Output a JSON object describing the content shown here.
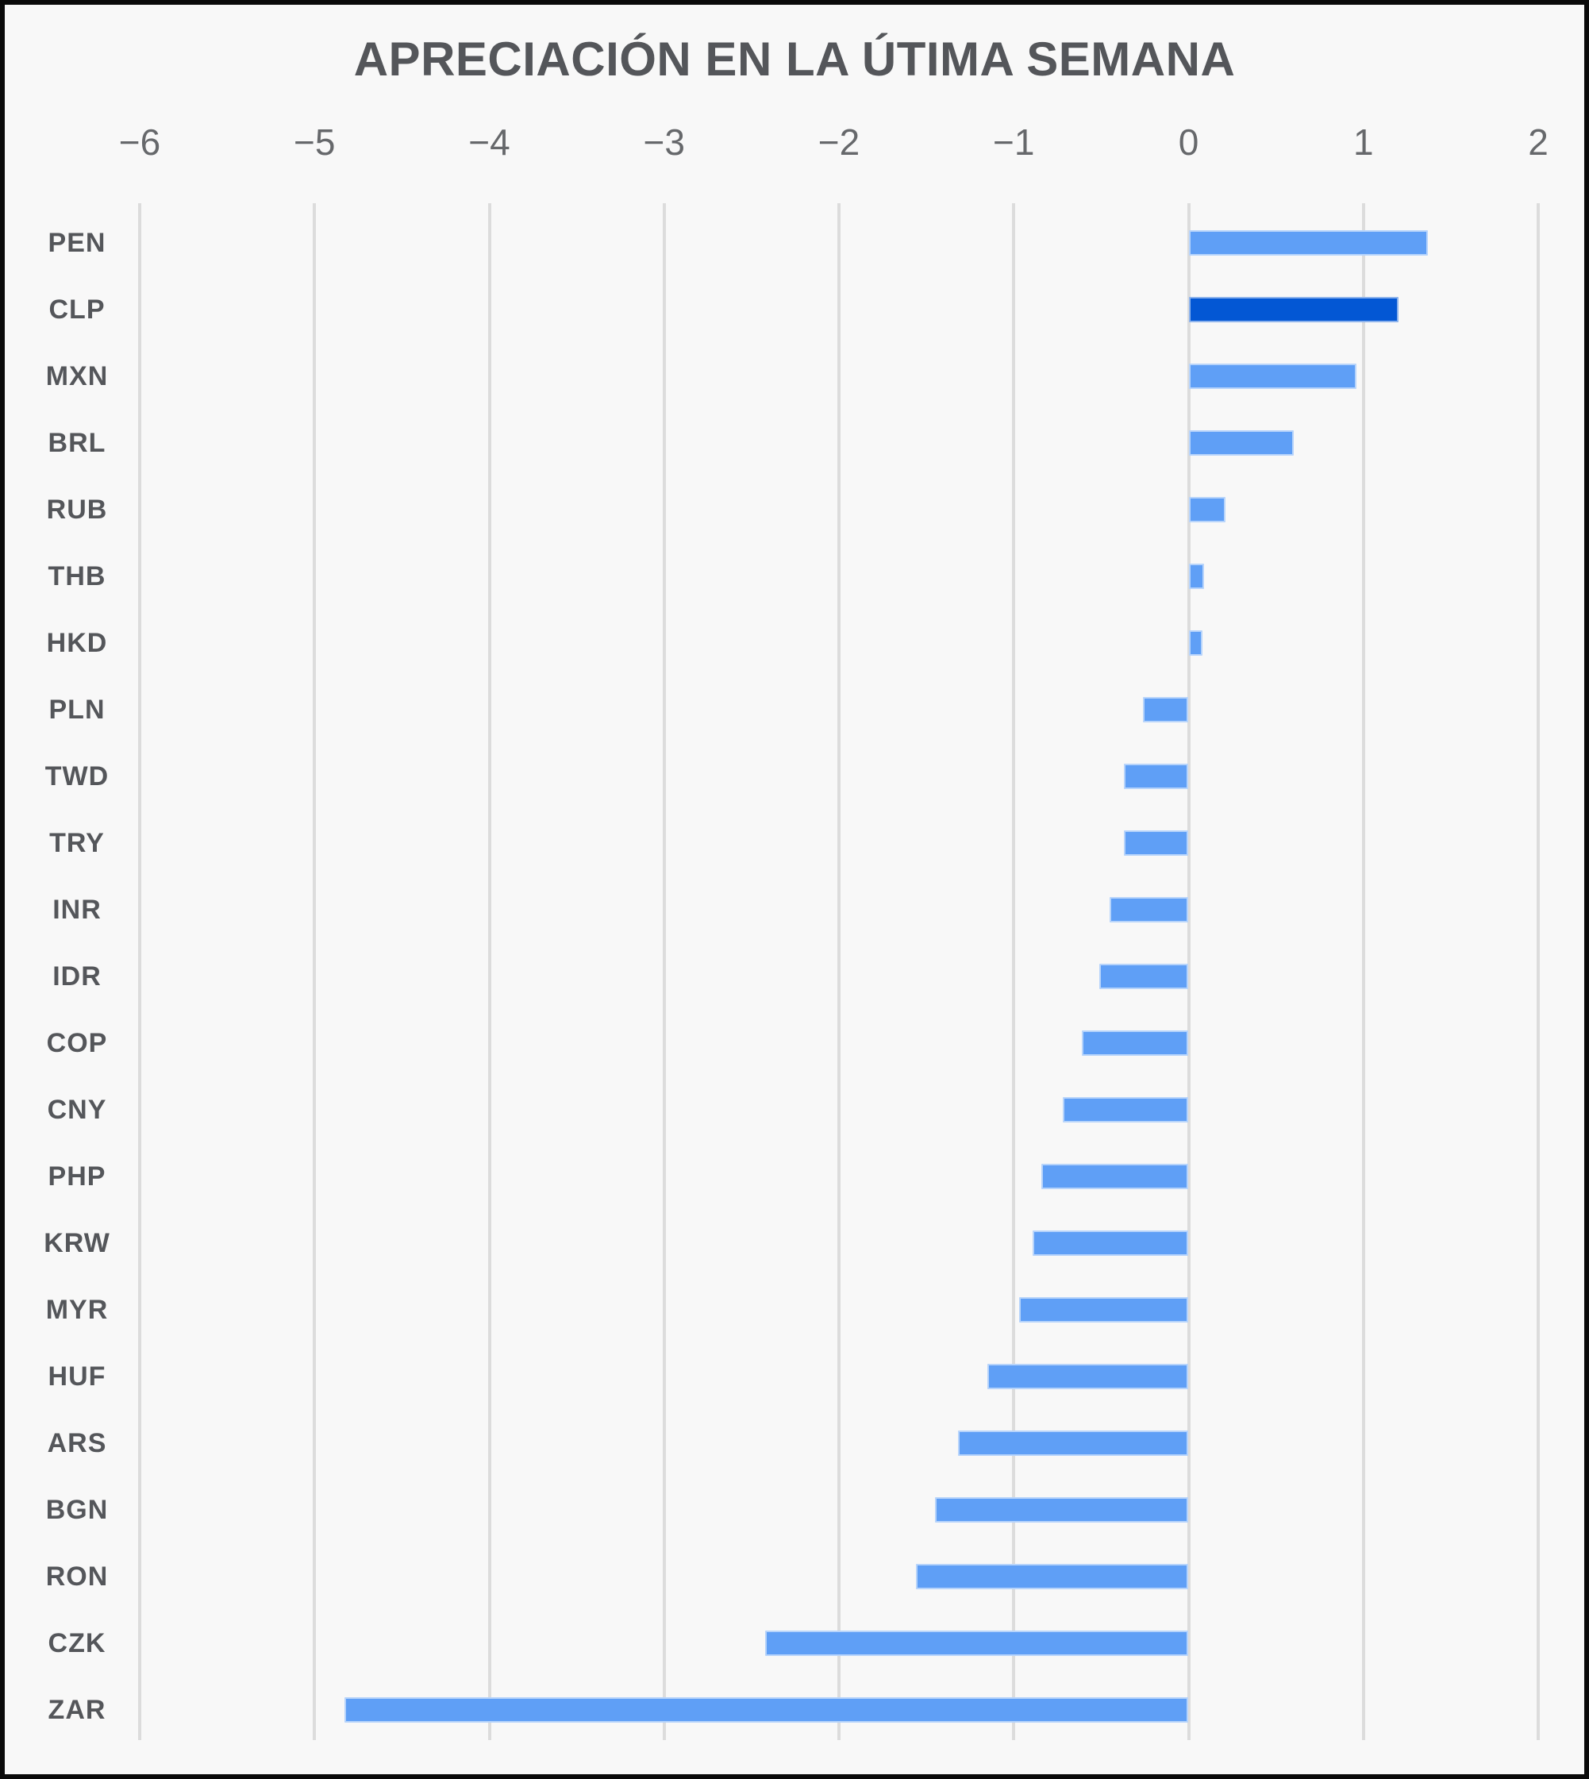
{
  "chart_data": {
    "type": "bar",
    "orientation": "horizontal",
    "title": "APRECIACIÓN EN LA ÚTIMA SEMANA",
    "categories": [
      "PEN",
      "CLP",
      "MXN",
      "BRL",
      "RUB",
      "THB",
      "HKD",
      "PLN",
      "TWD",
      "TRY",
      "INR",
      "IDR",
      "COP",
      "CNY",
      "PHP",
      "KRW",
      "MYR",
      "HUF",
      "ARS",
      "BGN",
      "RON",
      "CZK",
      "ZAR"
    ],
    "values": [
      1.37,
      1.2,
      0.96,
      0.6,
      0.21,
      0.09,
      0.08,
      -0.26,
      -0.37,
      -0.37,
      -0.45,
      -0.51,
      -0.61,
      -0.72,
      -0.84,
      -0.89,
      -0.97,
      -1.15,
      -1.32,
      -1.45,
      -1.56,
      -2.42,
      -4.83
    ],
    "xlim": [
      -6,
      2
    ],
    "xticks": [
      -6,
      -5,
      -4,
      -3,
      -2,
      -1,
      0,
      1,
      2
    ],
    "x_tick_labels": [
      "−6",
      "−5",
      "−4",
      "−3",
      "−2",
      "−1",
      "0",
      "1",
      "2"
    ],
    "grid": true,
    "legend": "none",
    "highlight_category": "CLP",
    "bar_color": "#5F9FF6",
    "highlight_color": "#0357D4",
    "background_color": "#F8F8F8",
    "gridline_color": "#DCDCDC",
    "text_color": "#54565A",
    "tick_text_color": "#66686B"
  }
}
